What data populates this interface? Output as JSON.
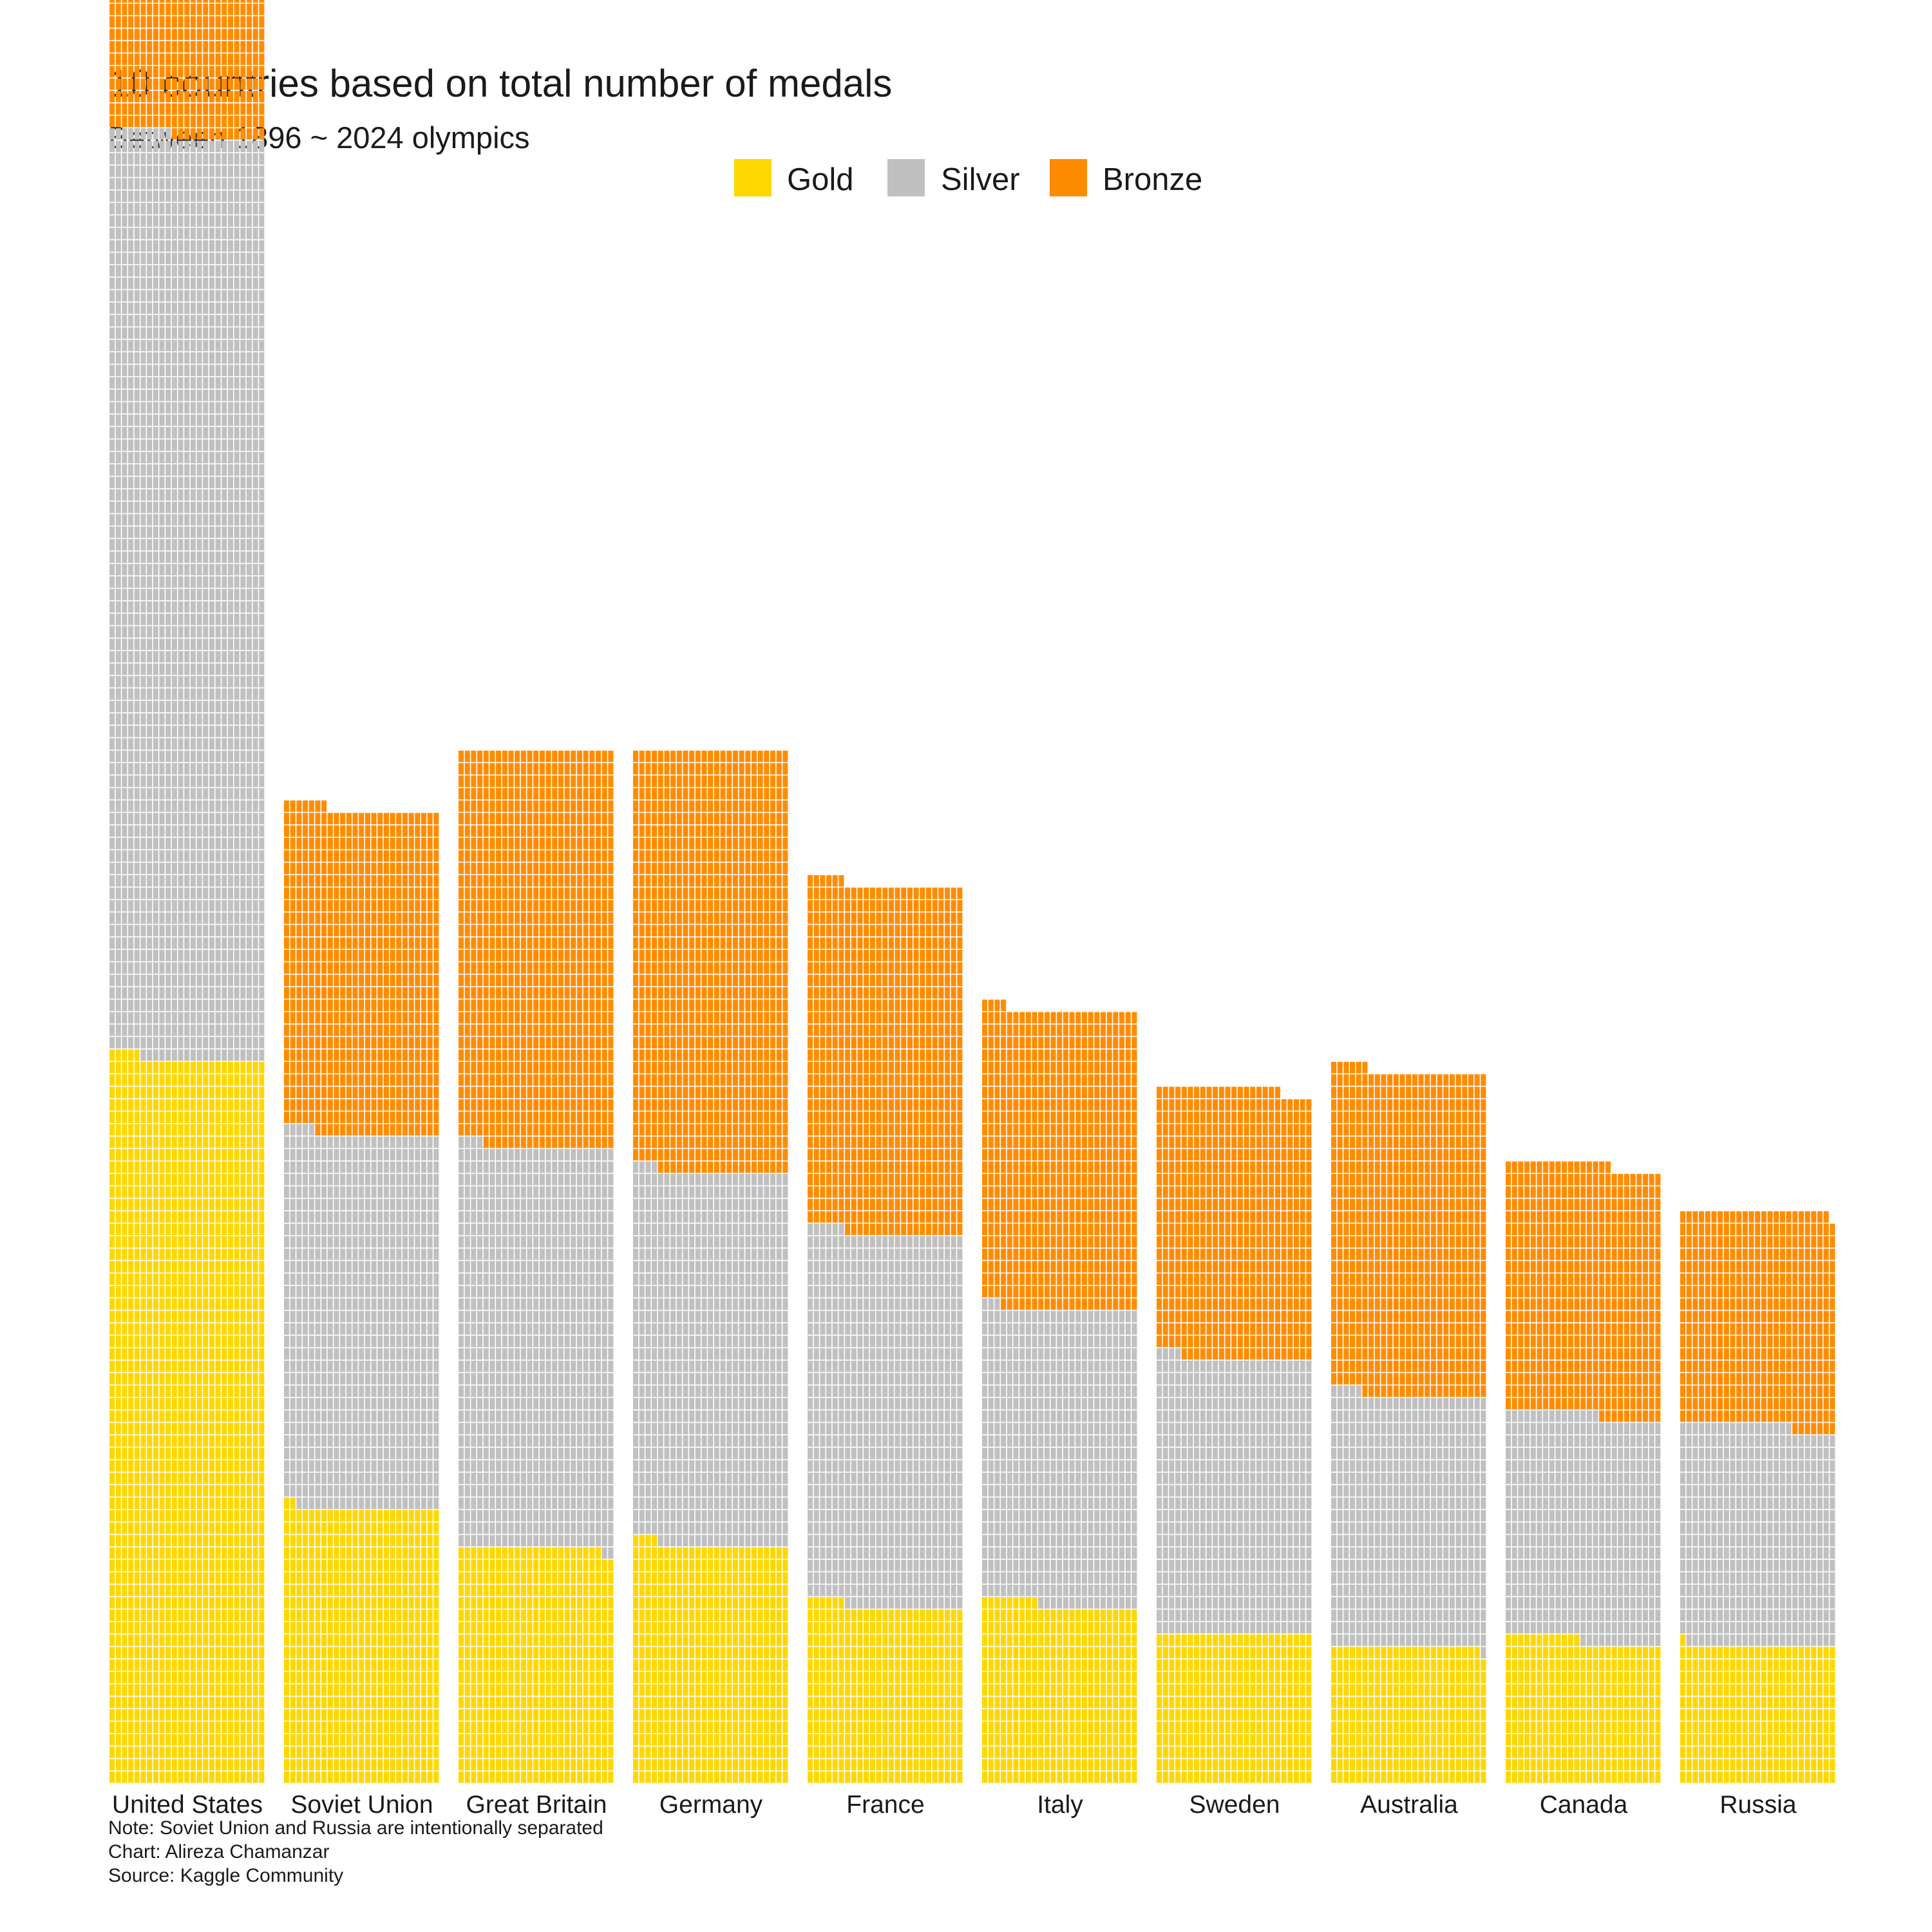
{
  "title": "10 countries based on total number of medals",
  "subtitle": "Between 1896 ~ 2024 olympics",
  "legend": [
    {
      "key": "gold",
      "label": "Gold",
      "color": "#FFD700"
    },
    {
      "key": "silver",
      "label": "Silver",
      "color": "#C0C0C0"
    },
    {
      "key": "bronze",
      "label": "Bronze",
      "color": "#FF8C00"
    }
  ],
  "caption": {
    "line1": "Note: Soviet Union and Russia are intentionally separated",
    "line2": "Chart: Alireza Chamanzar",
    "line3": "Source: Kaggle Community"
  },
  "chart_data": {
    "type": "bar",
    "subtype": "stacked waffle (one small cell per medal, 25 cells per row)",
    "cells_per_row": 25,
    "categories": [
      "United States",
      "Soviet Union",
      "Great Britain",
      "Germany",
      "France",
      "Italy",
      "Sweden",
      "Australia",
      "Canada",
      "Russia"
    ],
    "series": [
      {
        "name": "Gold",
        "color": "#FFD700",
        "values": [
          1455,
          552,
          473,
          479,
          356,
          359,
          300,
          274,
          287,
          276
        ]
      },
      {
        "name": "Silver",
        "color": "#C0C0C0",
        "values": [
          1855,
          753,
          806,
          750,
          750,
          594,
          554,
          506,
          453,
          442
        ]
      },
      {
        "name": "Bronze",
        "color": "#FF8C00",
        "values": [
          1550,
          652,
          796,
          846,
          700,
          601,
          541,
          651,
          502,
          431
        ]
      }
    ],
    "legend_position": "top-center",
    "grid": false
  }
}
